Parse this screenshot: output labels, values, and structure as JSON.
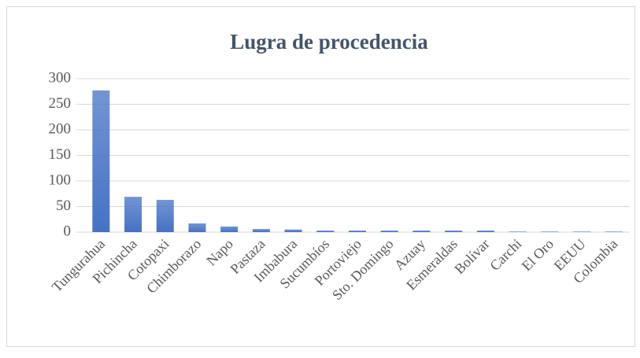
{
  "chart_data": {
    "type": "bar",
    "title": "Lugra de procedencia",
    "categories": [
      "Tungurahua",
      "Pichincha",
      "Cotopaxi",
      "Chimborazo",
      "Napo",
      "Pastaza",
      "Imbabura",
      "Sucumbíos",
      "Portoviejo",
      "Sto. Domingo",
      "Azuay",
      "Esmeraldas",
      "Bolívar",
      "Carchi",
      "El Oro",
      "EEUU",
      "Colombia"
    ],
    "values": [
      277,
      69,
      63,
      17,
      11,
      6,
      5,
      3,
      3,
      3,
      3,
      3,
      3,
      1,
      1,
      1,
      1
    ],
    "color": "#4472c4",
    "ylim": [
      0,
      300
    ],
    "yticks": [
      0,
      50,
      100,
      150,
      200,
      250,
      300
    ],
    "grid": true
  }
}
